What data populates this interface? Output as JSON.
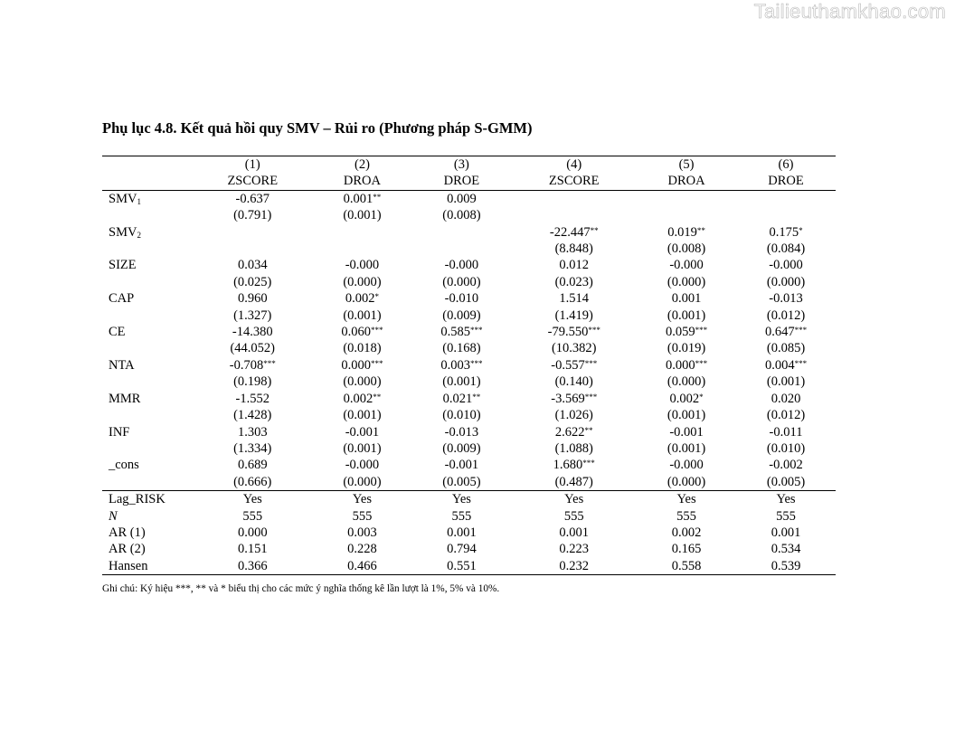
{
  "watermark": "Tailieuthamkhao.com",
  "title": "Phụ lục 4.8. Kết quả hồi quy SMV – Rủi ro (Phương pháp S-GMM)",
  "columns": [
    {
      "num": "(1)",
      "dep": "ZSCORE"
    },
    {
      "num": "(2)",
      "dep": "DROA"
    },
    {
      "num": "(3)",
      "dep": "DROE"
    },
    {
      "num": "(4)",
      "dep": "ZSCORE"
    },
    {
      "num": "(5)",
      "dep": "DROA"
    },
    {
      "num": "(6)",
      "dep": "DROE"
    }
  ],
  "rows": [
    {
      "label": "SMV",
      "sub": "1",
      "coef": [
        {
          "v": "-0.637",
          "s": ""
        },
        {
          "v": "0.001",
          "s": "**"
        },
        {
          "v": "0.009",
          "s": ""
        },
        {
          "v": "",
          "s": ""
        },
        {
          "v": "",
          "s": ""
        },
        {
          "v": "",
          "s": ""
        }
      ],
      "se": [
        "(0.791)",
        "(0.001)",
        "(0.008)",
        "",
        "",
        ""
      ]
    },
    {
      "label": "SMV",
      "sub": "2",
      "coef": [
        {
          "v": "",
          "s": ""
        },
        {
          "v": "",
          "s": ""
        },
        {
          "v": "",
          "s": ""
        },
        {
          "v": "-22.447",
          "s": "**"
        },
        {
          "v": "0.019",
          "s": "**"
        },
        {
          "v": "0.175",
          "s": "*"
        }
      ],
      "se": [
        "",
        "",
        "",
        "(8.848)",
        "(0.008)",
        "(0.084)"
      ]
    },
    {
      "label": "SIZE",
      "sub": "",
      "coef": [
        {
          "v": "0.034",
          "s": ""
        },
        {
          "v": "-0.000",
          "s": ""
        },
        {
          "v": "-0.000",
          "s": ""
        },
        {
          "v": "0.012",
          "s": ""
        },
        {
          "v": "-0.000",
          "s": ""
        },
        {
          "v": "-0.000",
          "s": ""
        }
      ],
      "se": [
        "(0.025)",
        "(0.000)",
        "(0.000)",
        "(0.023)",
        "(0.000)",
        "(0.000)"
      ]
    },
    {
      "label": "CAP",
      "sub": "",
      "coef": [
        {
          "v": "0.960",
          "s": ""
        },
        {
          "v": "0.002",
          "s": "*"
        },
        {
          "v": "-0.010",
          "s": ""
        },
        {
          "v": "1.514",
          "s": ""
        },
        {
          "v": "0.001",
          "s": ""
        },
        {
          "v": "-0.013",
          "s": ""
        }
      ],
      "se": [
        "(1.327)",
        "(0.001)",
        "(0.009)",
        "(1.419)",
        "(0.001)",
        "(0.012)"
      ]
    },
    {
      "label": "CE",
      "sub": "",
      "coef": [
        {
          "v": "-14.380",
          "s": ""
        },
        {
          "v": "0.060",
          "s": "***"
        },
        {
          "v": "0.585",
          "s": "***"
        },
        {
          "v": "-79.550",
          "s": "***"
        },
        {
          "v": "0.059",
          "s": "***"
        },
        {
          "v": "0.647",
          "s": "***"
        }
      ],
      "se": [
        "(44.052)",
        "(0.018)",
        "(0.168)",
        "(10.382)",
        "(0.019)",
        "(0.085)"
      ]
    },
    {
      "label": "NTA",
      "sub": "",
      "coef": [
        {
          "v": "-0.708",
          "s": "***"
        },
        {
          "v": "0.000",
          "s": "***"
        },
        {
          "v": "0.003",
          "s": "***"
        },
        {
          "v": "-0.557",
          "s": "***"
        },
        {
          "v": "0.000",
          "s": "***"
        },
        {
          "v": "0.004",
          "s": "***"
        }
      ],
      "se": [
        "(0.198)",
        "(0.000)",
        "(0.001)",
        "(0.140)",
        "(0.000)",
        "(0.001)"
      ]
    },
    {
      "label": "MMR",
      "sub": "",
      "coef": [
        {
          "v": "-1.552",
          "s": ""
        },
        {
          "v": "0.002",
          "s": "**"
        },
        {
          "v": "0.021",
          "s": "**"
        },
        {
          "v": "-3.569",
          "s": "***"
        },
        {
          "v": "0.002",
          "s": "*"
        },
        {
          "v": "0.020",
          "s": ""
        }
      ],
      "se": [
        "(1.428)",
        "(0.001)",
        "(0.010)",
        "(1.026)",
        "(0.001)",
        "(0.012)"
      ]
    },
    {
      "label": "INF",
      "sub": "",
      "coef": [
        {
          "v": "1.303",
          "s": ""
        },
        {
          "v": "-0.001",
          "s": ""
        },
        {
          "v": "-0.013",
          "s": ""
        },
        {
          "v": "2.622",
          "s": "**"
        },
        {
          "v": "-0.001",
          "s": ""
        },
        {
          "v": "-0.011",
          "s": ""
        }
      ],
      "se": [
        "(1.334)",
        "(0.001)",
        "(0.009)",
        "(1.088)",
        "(0.001)",
        "(0.010)"
      ]
    },
    {
      "label": "_cons",
      "sub": "",
      "coef": [
        {
          "v": "0.689",
          "s": ""
        },
        {
          "v": "-0.000",
          "s": ""
        },
        {
          "v": "-0.001",
          "s": ""
        },
        {
          "v": "1.680",
          "s": "***"
        },
        {
          "v": "-0.000",
          "s": ""
        },
        {
          "v": "-0.002",
          "s": ""
        }
      ],
      "se": [
        "(0.666)",
        "(0.000)",
        "(0.005)",
        "(0.487)",
        "(0.000)",
        "(0.005)"
      ]
    }
  ],
  "stats": [
    {
      "label": "Lag_RISK",
      "italic": false,
      "values": [
        "Yes",
        "Yes",
        "Yes",
        "Yes",
        "Yes",
        "Yes"
      ]
    },
    {
      "label": "N",
      "italic": true,
      "values": [
        "555",
        "555",
        "555",
        "555",
        "555",
        "555"
      ]
    },
    {
      "label": "AR (1)",
      "italic": false,
      "values": [
        "0.000",
        "0.003",
        "0.001",
        "0.001",
        "0.002",
        "0.001"
      ]
    },
    {
      "label": "AR (2)",
      "italic": false,
      "values": [
        "0.151",
        "0.228",
        "0.794",
        "0.223",
        "0.165",
        "0.534"
      ]
    },
    {
      "label": "Hansen",
      "italic": false,
      "values": [
        "0.366",
        "0.466",
        "0.551",
        "0.232",
        "0.558",
        "0.539"
      ]
    }
  ],
  "note": "Ghi chú: Ký hiệu ***, ** và * biểu thị cho các mức ý nghĩa thống kê lần lượt là 1%, 5% và 10%."
}
